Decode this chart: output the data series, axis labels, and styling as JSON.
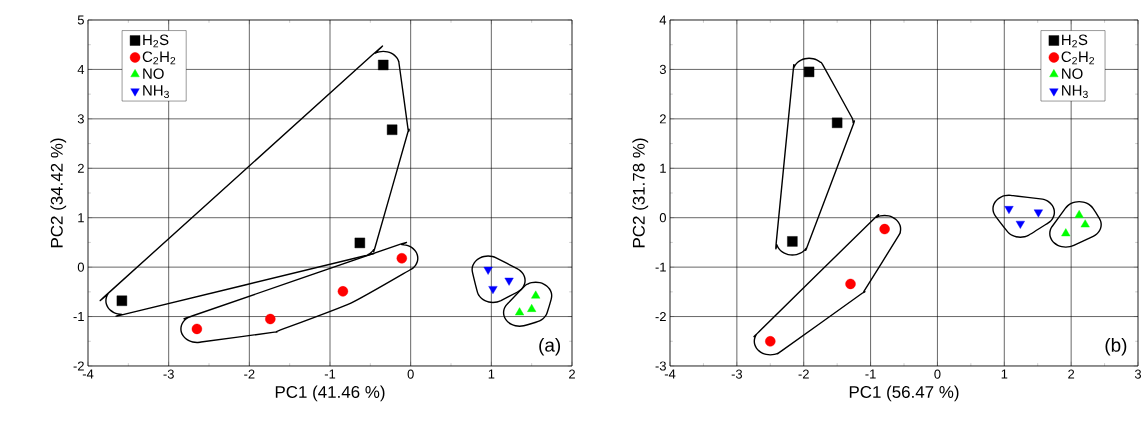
{
  "chart_data": [
    {
      "type": "scatter",
      "xlabel": "PC1 (41.46 %)",
      "ylabel": "PC2 (34.42 %)",
      "xlim": [
        -4,
        2
      ],
      "ylim": [
        -2,
        5
      ],
      "xticks": [
        -4,
        -3,
        -2,
        -1,
        0,
        1,
        2
      ],
      "yticks": [
        -2,
        -1,
        0,
        1,
        2,
        3,
        4,
        5
      ],
      "grid": true,
      "legend": "top left",
      "annotations": [
        "(a)"
      ],
      "series": [
        {
          "name": "H$_{2}$S",
          "color": "#000000",
          "marker": "square",
          "x": [
            -3.58,
            -0.63,
            -0.34,
            -0.23
          ],
          "values": [
            -0.68,
            0.49,
            4.09,
            2.78
          ]
        },
        {
          "name": "C$_{2}$H$_{2}$",
          "color": "#ff0000",
          "marker": "circle",
          "x": [
            -2.65,
            -1.74,
            -0.84,
            -0.11
          ],
          "values": [
            -1.25,
            -1.05,
            -0.49,
            0.18
          ]
        },
        {
          "name": "NO",
          "color": "#00ff00",
          "marker": "triangle",
          "x": [
            1.55,
            1.35,
            1.5
          ],
          "values": [
            -0.58,
            -0.92,
            -0.85
          ]
        },
        {
          "name": "NH$_{3}$",
          "color": "#0000ff",
          "marker": "triangle-down",
          "x": [
            0.96,
            1.22,
            1.02
          ],
          "values": [
            -0.05,
            -0.27,
            -0.44
          ]
        }
      ]
    },
    {
      "type": "scatter",
      "xlabel": "PC1 (56.47 %)",
      "ylabel": "PC2 (31.78 %)",
      "xlim": [
        -4,
        3
      ],
      "ylim": [
        -3,
        4
      ],
      "xticks": [
        -4,
        -3,
        -2,
        -1,
        0,
        1,
        2,
        3
      ],
      "yticks": [
        -3,
        -2,
        -1,
        0,
        1,
        2,
        3,
        4
      ],
      "grid": true,
      "legend": "top right",
      "annotations": [
        "(b)"
      ],
      "series": [
        {
          "name": "H$_{2}$S",
          "color": "#000000",
          "marker": "square",
          "x": [
            -1.92,
            -1.5,
            -2.17
          ],
          "values": [
            2.95,
            1.92,
            -0.48
          ]
        },
        {
          "name": "C$_{2}$H$_{2}$",
          "color": "#ff0000",
          "marker": "circle",
          "x": [
            -0.79,
            -1.3,
            -2.5
          ],
          "values": [
            -0.23,
            -1.34,
            -2.5
          ]
        },
        {
          "name": "NO",
          "color": "#00ff00",
          "marker": "triangle",
          "x": [
            2.12,
            2.21,
            1.92
          ],
          "values": [
            0.05,
            -0.14,
            -0.32
          ]
        },
        {
          "name": "NH$_{3}$",
          "color": "#0000ff",
          "marker": "triangle-down",
          "x": [
            1.07,
            1.24,
            1.51
          ],
          "values": [
            0.18,
            -0.12,
            0.11
          ]
        }
      ]
    }
  ]
}
